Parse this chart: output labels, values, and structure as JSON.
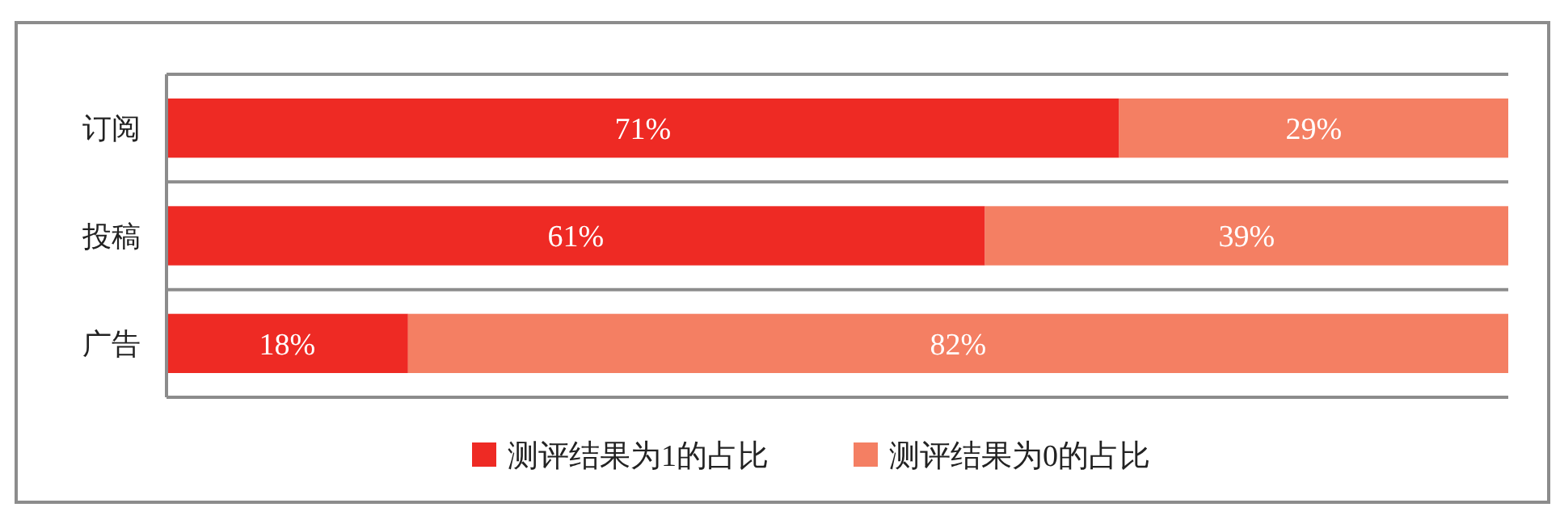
{
  "chart_data": {
    "type": "bar",
    "orientation": "horizontal",
    "stacked": true,
    "categories": [
      "订阅",
      "投稿",
      "广告"
    ],
    "xlim": [
      0,
      100
    ],
    "tick_labels": "y",
    "grid": "y",
    "legend": "bottom",
    "series": [
      {
        "name": "测评结果为1的占比",
        "color": "#ee2a24",
        "values": [
          71,
          61,
          18
        ],
        "value_labels": [
          "71%",
          "61%",
          "18%"
        ]
      },
      {
        "name": "测评结果为0的占比",
        "color": "#f47f63",
        "values": [
          29,
          39,
          82
        ],
        "value_labels": [
          "29%",
          "39%",
          "82%"
        ]
      }
    ]
  }
}
